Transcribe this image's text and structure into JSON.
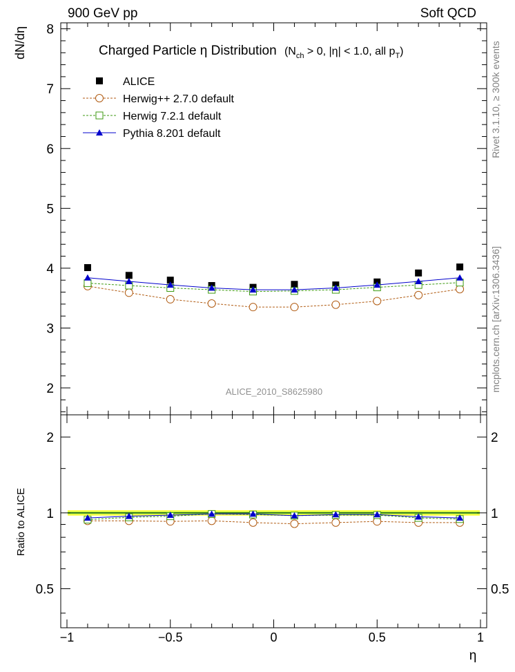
{
  "header": {
    "left": "900 GeV pp",
    "right": "Soft QCD"
  },
  "side_labels": {
    "rivet": "Rivet 3.1.10, ≥ 300k events",
    "mcplots": "mcplots.cern.ch [arXiv:1306.3436]"
  },
  "title": {
    "main": "Charged Particle  η Distribution",
    "cond_open": "(N",
    "cond_sub1": "ch",
    "cond_mid": " > 0, |η| < 1.0, all p",
    "cond_sub2": "T",
    "cond_close": ")"
  },
  "analysis_id": "ALICE_2010_S8625980",
  "colors": {
    "data": "#000000",
    "herwigpp": "#b05a10",
    "herwig7": "#3c9a10",
    "pythia": "#0000cc",
    "band_outer": "#ffff44",
    "band_inner": "#88ff44"
  },
  "chart_data": [
    {
      "type": "line",
      "ylabel": "dN/dη",
      "xlim": [
        -1.03,
        1.03
      ],
      "ylim": [
        1.55,
        8.1
      ],
      "yticks": [
        2,
        3,
        4,
        5,
        6,
        7,
        8
      ],
      "ytick_labels": [
        "2",
        "3",
        "4",
        "5",
        "6",
        "7",
        "8"
      ],
      "x": [
        -0.9,
        -0.7,
        -0.5,
        -0.3,
        -0.1,
        0.1,
        0.3,
        0.5,
        0.7,
        0.9
      ],
      "series": [
        {
          "name": "ALICE",
          "marker": "filled-square",
          "values": [
            4.01,
            3.88,
            3.8,
            3.71,
            3.68,
            3.73,
            3.72,
            3.77,
            3.92,
            4.02
          ]
        },
        {
          "name": "Herwig++ 2.7.0 default",
          "marker": "open-circle",
          "values": [
            3.7,
            3.59,
            3.48,
            3.41,
            3.35,
            3.35,
            3.39,
            3.45,
            3.55,
            3.65
          ]
        },
        {
          "name": "Herwig 7.2.1 default",
          "marker": "open-square",
          "values": [
            3.75,
            3.71,
            3.67,
            3.64,
            3.61,
            3.62,
            3.64,
            3.68,
            3.72,
            3.76
          ]
        },
        {
          "name": "Pythia 8.201 default",
          "marker": "filled-triangle",
          "values": [
            3.84,
            3.78,
            3.72,
            3.67,
            3.64,
            3.64,
            3.67,
            3.72,
            3.78,
            3.84
          ]
        }
      ],
      "legend": "top-left"
    },
    {
      "type": "line",
      "ylabel": "Ratio to ALICE",
      "xlabel": "η",
      "xlim": [
        -1.03,
        1.03
      ],
      "ylim": [
        0.35,
        2.45
      ],
      "ylog": true,
      "yticks": [
        0.5,
        1,
        2
      ],
      "ytick_labels": [
        "0.5",
        "1",
        "2"
      ],
      "xticks": [
        -1,
        -0.5,
        0,
        0.5,
        1
      ],
      "xtick_labels": [
        "−1",
        "−0.5",
        "0",
        "0.5",
        "1"
      ],
      "x": [
        -0.9,
        -0.7,
        -0.5,
        -0.3,
        -0.1,
        0.1,
        0.3,
        0.5,
        0.7,
        0.9
      ],
      "band": {
        "outer": [
          0.975,
          1.025
        ],
        "inner": [
          0.99,
          1.01
        ]
      },
      "series": [
        {
          "name": "Herwig++ 2.7.0 default",
          "marker": "open-circle",
          "values": [
            0.93,
            0.93,
            0.925,
            0.93,
            0.915,
            0.905,
            0.915,
            0.925,
            0.915,
            0.915
          ]
        },
        {
          "name": "Herwig 7.2.1 default",
          "marker": "open-square",
          "values": [
            0.94,
            0.96,
            0.97,
            0.99,
            0.985,
            0.975,
            0.98,
            0.98,
            0.955,
            0.945
          ]
        },
        {
          "name": "Pythia 8.201 default",
          "marker": "filled-triangle",
          "values": [
            0.955,
            0.97,
            0.98,
            0.99,
            0.99,
            0.975,
            0.985,
            0.985,
            0.965,
            0.955
          ]
        }
      ]
    }
  ]
}
